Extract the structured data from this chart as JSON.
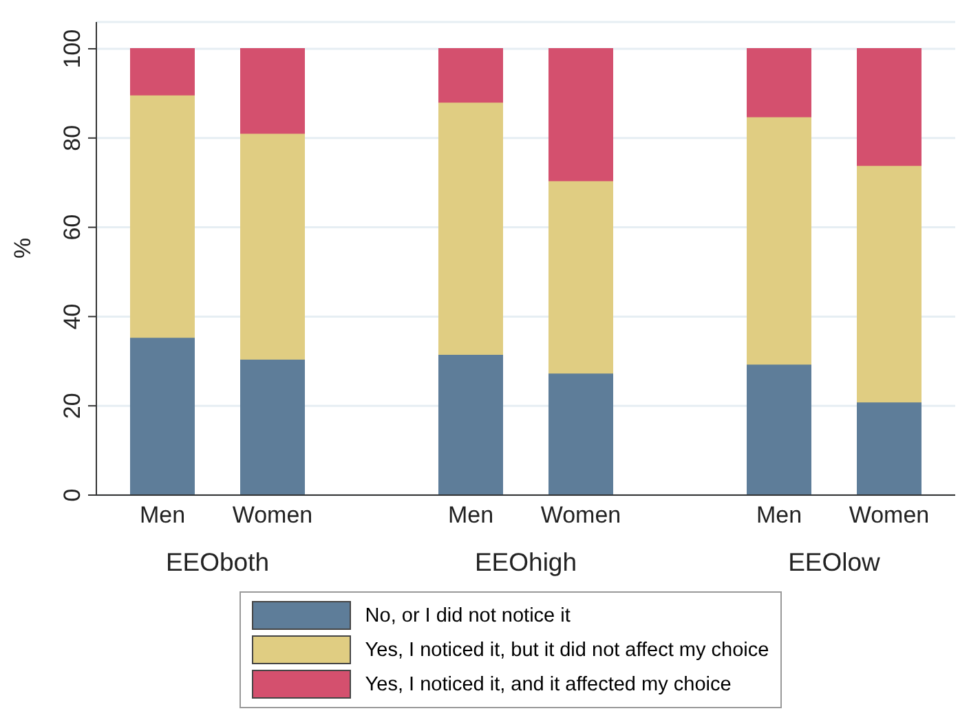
{
  "chart_data": {
    "type": "bar",
    "stacked": true,
    "ylabel": "%",
    "categories": [
      "Men",
      "Women",
      "Men",
      "Women",
      "Men",
      "Women"
    ],
    "annotations": [
      "EEOboth",
      "EEOhigh",
      "EEOlow"
    ],
    "series": [
      {
        "name": "No, or I did not notice it",
        "color": "#5e7d99",
        "values": [
          35.4,
          30.5,
          31.6,
          27.4,
          29.4,
          20.9
        ]
      },
      {
        "name": "Yes, I noticed it, but it did not affect my choice",
        "color": "#e0cd82",
        "values": [
          54.3,
          50.6,
          56.5,
          43.1,
          55.4,
          53.0
        ]
      },
      {
        "name": "Yes, I noticed it, and it affected my choice",
        "color": "#d4506e",
        "values": [
          10.3,
          18.9,
          11.9,
          29.5,
          15.2,
          26.1
        ]
      }
    ],
    "ylim": [
      0,
      106
    ],
    "yticks": [
      0,
      20,
      40,
      60,
      80,
      100
    ],
    "grid": "y",
    "legend": "bottom"
  }
}
